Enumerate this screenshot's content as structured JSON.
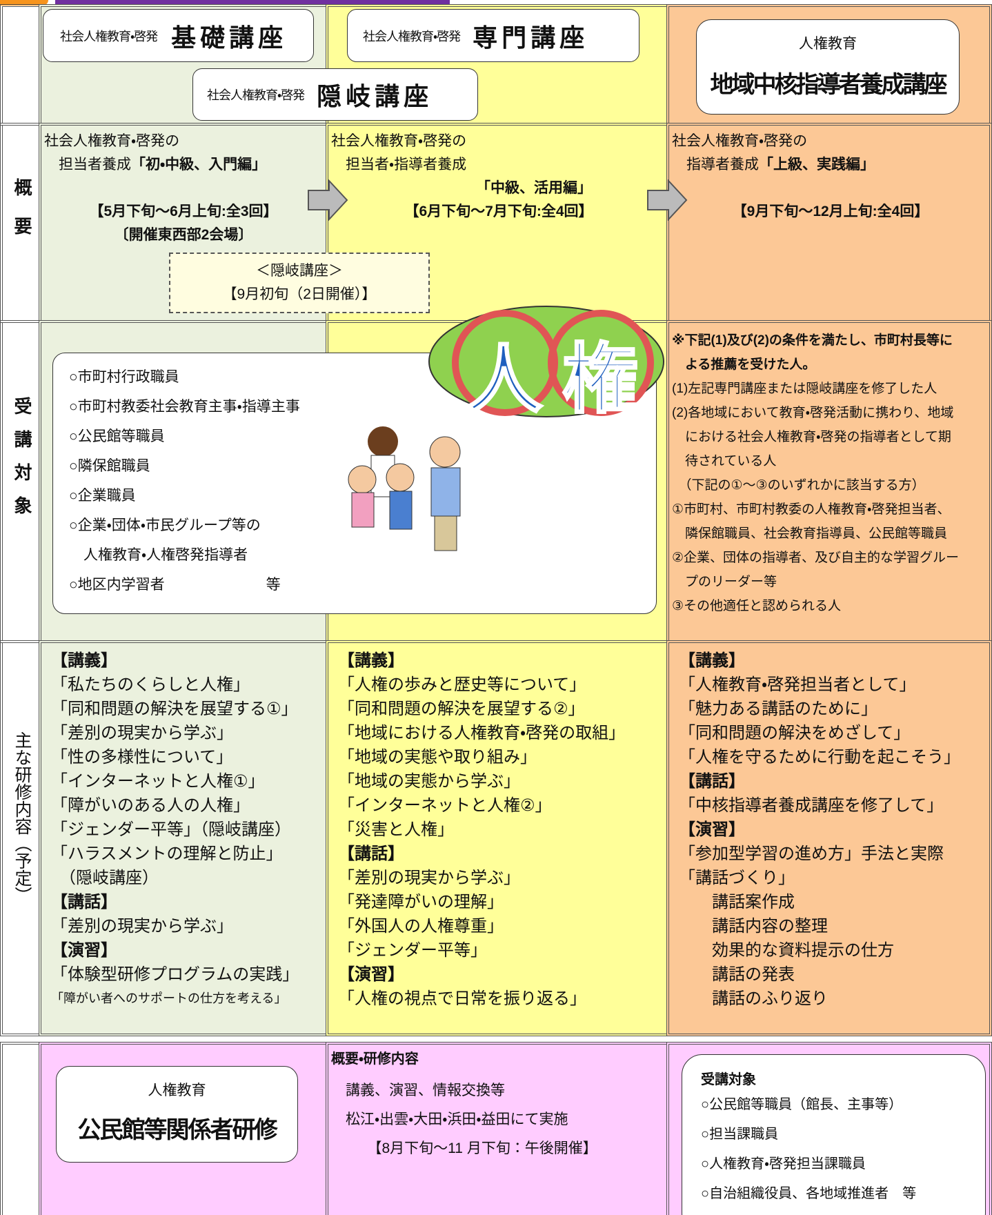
{
  "header": {
    "basic": {
      "prefix": "社会人権教育・啓発",
      "title": "基礎講座"
    },
    "specialized": {
      "prefix": "社会人権教育・啓発",
      "title": "専門講座"
    },
    "oki": {
      "prefix": "社会人権教育・啓発",
      "title": "隠岐講座"
    },
    "regional": {
      "prefix": "人権教育",
      "title": "地域中核指導者養成講座"
    }
  },
  "labels": {
    "overview": "概要",
    "targets": "受講対象",
    "content": "主な研修内容（予定）"
  },
  "overview": {
    "basic": {
      "lines": [
        "社会人権教育・啓発の",
        [
          "　担当者養成",
          {
            "text": "「初・中級、入門編」",
            "bold": true
          }
        ]
      ],
      "schedule": [
        {
          "text": "【5月下旬～6月上旬:全3回】",
          "bold": true
        },
        {
          "text": "〔開催東西部2会場〕",
          "bold": true
        }
      ]
    },
    "oki": [
      "＜隠岐講座＞",
      "【9月初旬（2日開催）】"
    ],
    "specialized": {
      "lines": [
        "社会人権教育・啓発の",
        "　担当者・指導者養成"
      ],
      "level": [
        {
          "text": "「中級、活用編」",
          "bold": true
        }
      ],
      "schedule": [
        {
          "text": "【6月下旬～7月下旬:全4回】",
          "bold": true
        }
      ]
    },
    "regional": {
      "lines": [
        "社会人権教育・啓発の",
        [
          "　指導者養成",
          {
            "text": "「上級、実践編」",
            "bold": true
          }
        ]
      ],
      "schedule": [
        {
          "text": "【9月下旬～12月上旬:全4回】",
          "bold": true
        }
      ]
    }
  },
  "targets": {
    "basic": [
      "○市町村行政職員",
      "○市町村教委社会教育主事・指導主事",
      "○公民館等職員",
      "○隣保館職員",
      "○企業職員",
      "○企業・団体・市民グループ等の",
      "　人権教育・人権啓発指導者",
      "○地区内学習者　　　　　　　等"
    ],
    "cloud": [
      "人",
      "権"
    ],
    "regional": [
      {
        "text": "※下記(1)及び(2)の条件を満たし、市町村長等に",
        "bold": true
      },
      {
        "text": "　よる推薦を受けた人。",
        "bold": true
      },
      "(1)左記専門講座または隠岐講座を修了した人",
      "(2)各地域において教育・啓発活動に携わり、地域",
      "　における社会人権教育・啓発の指導者として期",
      "　待されている人",
      "　（下記の①～③のいずれかに該当する方）",
      "①市町村、市町村教委の人権教育・啓発担当者、",
      "　隣保館職員、社会教育指導員、公民館等職員",
      "②企業、団体の指導者、及び自主的な学習グルー",
      "　プのリーダー等",
      "③その他適任と認められる人"
    ]
  },
  "content": {
    "basic": [
      {
        "text": "【講義】",
        "bold": true
      },
      "「私たちのくらしと人権」",
      "「同和問題の解決を展望する①」",
      "「差別の現実から学ぶ」",
      "「性の多様性について」",
      "「インターネットと人権①」",
      "「障がいのある人の人権」",
      "「ジェンダー平等」（隠岐講座）",
      "「ハラスメントの理解と防止」",
      "　（隠岐講座）",
      {
        "text": "【講話】",
        "bold": true
      },
      "「差別の現実から学ぶ」",
      {
        "text": "【演習】",
        "bold": true
      },
      "「体験型研修プログラムの実践」",
      {
        "text": "「障がい者へのサポートの仕方を考える」",
        "small": true
      }
    ],
    "specialized": [
      {
        "text": "【講義】",
        "bold": true
      },
      "「人権の歩みと歴史等について」",
      "「同和問題の解決を展望する②」",
      "「地域における人権教育・啓発の取組」",
      "「地域の実態や取り組み」",
      "「地域の実態から学ぶ」",
      "「インターネットと人権②」",
      "「災害と人権」",
      {
        "text": "【講話】",
        "bold": true
      },
      "「差別の現実から学ぶ」",
      "「発達障がいの理解」",
      "「外国人の人権尊重」",
      "「ジェンダー平等」",
      {
        "text": "【演習】",
        "bold": true
      },
      "「人権の視点で日常を振り返る」"
    ],
    "regional": [
      {
        "text": "【講義】",
        "bold": true
      },
      "「人権教育・啓発担当者として」",
      "「魅力ある講話のために」",
      "「同和問題の解決をめざして」",
      "「人権を守るために行動を起こそう」",
      {
        "text": "【講話】",
        "bold": true
      },
      "「中核指導者養成講座を修了して」",
      {
        "text": "【演習】",
        "bold": true
      },
      "「参加型学習の進め方」手法と実際",
      "「講話づくり」",
      "　　講話案作成",
      "　　講話内容の整理",
      "　　効果的な資料提示の仕方",
      "　　講話の発表",
      "　　講話のふり返り"
    ]
  },
  "kominkan": {
    "box": {
      "prefix": "人権教育",
      "title": "公民館等関係者研修"
    },
    "overview": {
      "heading": "概要・研修内容",
      "lines": [
        "　講義、演習、情報交換等",
        "　松江・出雲・大田・浜田・益田にて実施",
        "　　　【8月下旬～11 月下旬：午後開催】"
      ]
    },
    "targets": {
      "heading": "受講対象",
      "lines": [
        "○公民館等職員（館長、主事等）",
        "○担当課職員",
        "○人権教育・啓発担当課職員",
        "○自治組織役員、各地域推進者　等"
      ]
    }
  }
}
